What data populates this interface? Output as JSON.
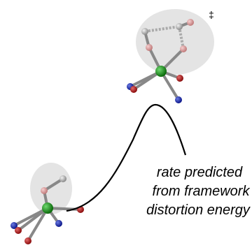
{
  "annotation": {
    "symbol": "‡",
    "lines": [
      "rate predicted",
      "from framework",
      "distortion energy"
    ]
  }
}
